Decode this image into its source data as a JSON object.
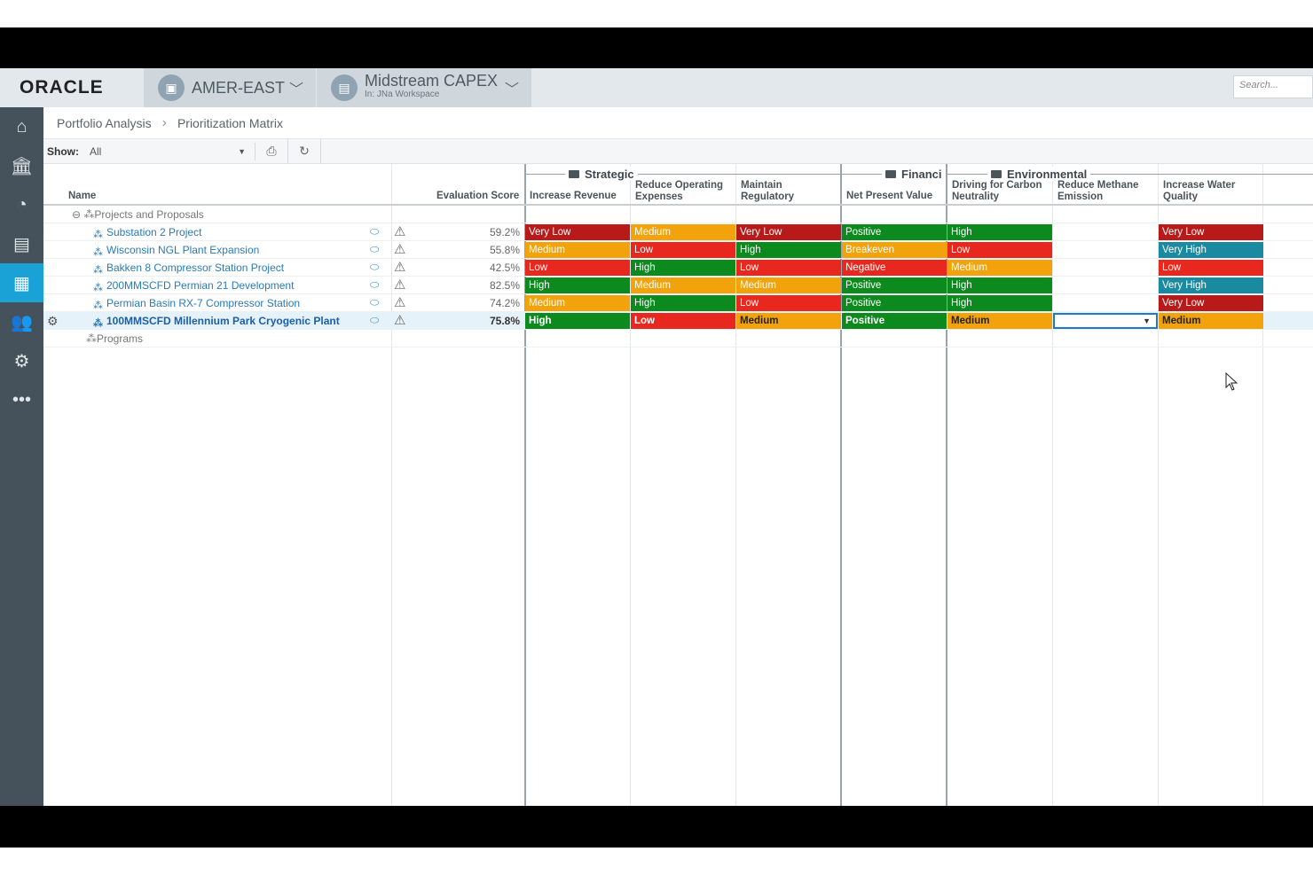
{
  "app": {
    "brand": "ORACLE"
  },
  "header": {
    "context": {
      "title": "AMER-EAST"
    },
    "workspace": {
      "title": "Midstream CAPEX",
      "subtitle": "In: JNa Workspace"
    },
    "search_placeholder": "Search..."
  },
  "breadcrumb": {
    "items": [
      "Portfolio Analysis",
      "Prioritization Matrix"
    ]
  },
  "toolbar": {
    "show_label": "Show:",
    "show_value": "All"
  },
  "groups": {
    "strategic": "Strategic",
    "financial": "Financi",
    "environmental": "Environmental"
  },
  "columns": {
    "name": "Name",
    "score": "Evaluation Score",
    "c1": "Increase Revenue",
    "c2": "Reduce Operating Expenses",
    "c3": "Maintain Regulatory",
    "c4": "Net Present Value",
    "c5": "Driving for Carbon Neutrality",
    "c6": "Reduce Methane Emission",
    "c7": "Increase Water Quality"
  },
  "tree": {
    "group_projects": "Projects and Proposals",
    "group_programs": "Programs"
  },
  "rows": [
    {
      "name": "Substation 2 Project",
      "score": "59.2%",
      "cells": [
        "Very Low",
        "Medium",
        "Very Low",
        "Positive",
        "High",
        "",
        "Very Low"
      ]
    },
    {
      "name": "Wisconsin NGL Plant Expansion",
      "score": "55.8%",
      "cells": [
        "Medium",
        "Low",
        "High",
        "Breakeven",
        "Low",
        "",
        "Very High"
      ]
    },
    {
      "name": "Bakken 8 Compressor Station Project",
      "score": "42.5%",
      "cells": [
        "Low",
        "High",
        "Low",
        "Negative",
        "Medium",
        "",
        "Low"
      ]
    },
    {
      "name": "200MMSCFD Permian 21 Development",
      "score": "82.5%",
      "cells": [
        "High",
        "Medium",
        "Medium",
        "Positive",
        "High",
        "",
        "Very High"
      ]
    },
    {
      "name": "Permian Basin RX-7 Compressor Station",
      "score": "74.2%",
      "cells": [
        "Medium",
        "High",
        "Low",
        "Positive",
        "High",
        "",
        "Very Low"
      ]
    },
    {
      "name": "100MMSCFD Millennium Park Cryogenic Plant",
      "score": "75.8%",
      "cells": [
        "High",
        "Low",
        "Medium",
        "Positive",
        "Medium",
        "",
        "Medium"
      ]
    }
  ],
  "colors": {
    "very_low": "#b81a1a",
    "low": "#e8281e",
    "medium": "#f2a20a",
    "high": "#0d8a1e",
    "very_high": "#1a8aa0",
    "accent": "#1aa1d6"
  }
}
